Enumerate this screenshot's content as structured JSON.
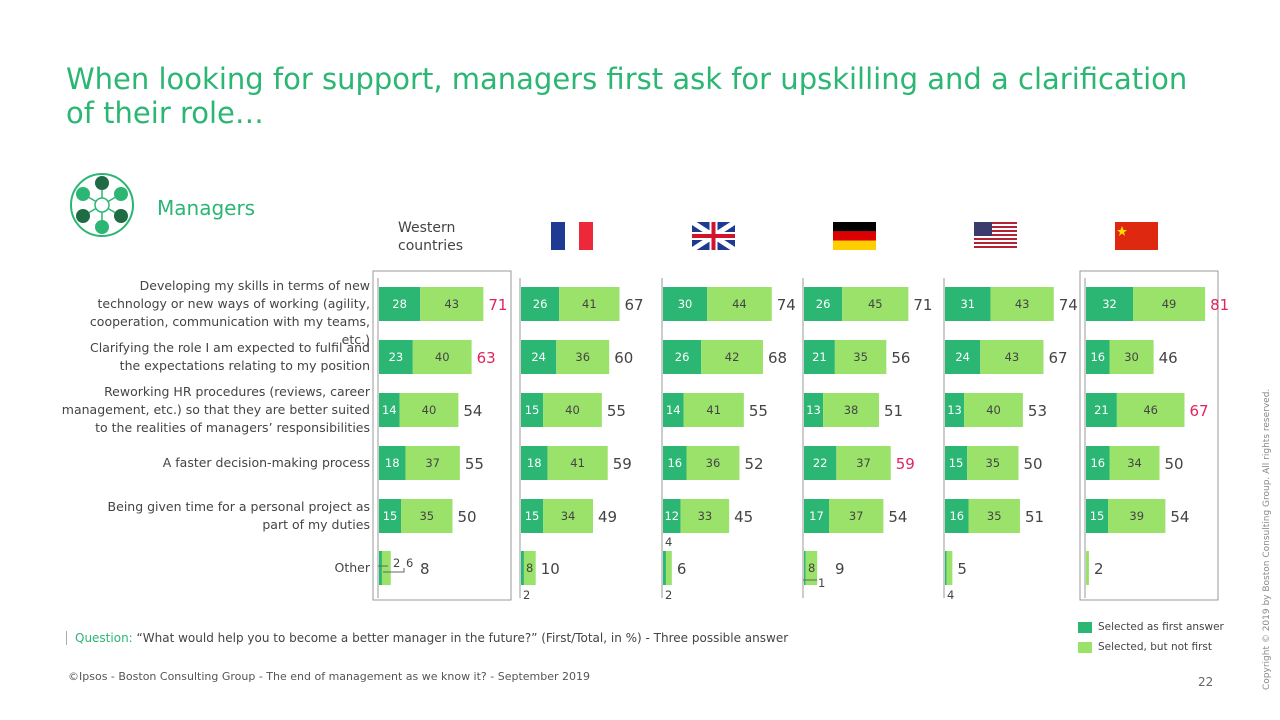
{
  "title": "When looking for support, managers first ask for upskilling and a clarification of their role…",
  "segment": "Managers",
  "colors": {
    "first": "#2bb673",
    "not_first": "#9be26b",
    "highlight": "#e0245e",
    "title": "#2bb673"
  },
  "chart_data": {
    "type": "bar",
    "stacked": true,
    "orientation": "horizontal",
    "groups": [
      "Western countries",
      "France",
      "United Kingdom",
      "Germany",
      "United States",
      "China"
    ],
    "categories": [
      "Developing my skills in terms of new technology or new ways of working (agility, cooperation, communication with my teams, etc.)",
      "Clarifying the role I am expected to fulfil and the expectations relating to my position",
      "Reworking HR procedures (reviews, career management, etc.) so that they are better suited to the realities of managers’ responsibilities",
      "A faster decision-making process",
      "Being given time for a personal project as part of my duties",
      "Other"
    ],
    "series": [
      {
        "name": "Selected as first answer",
        "values": [
          [
            28,
            23,
            14,
            18,
            15,
            2
          ],
          [
            26,
            24,
            15,
            18,
            15,
            2
          ],
          [
            30,
            26,
            14,
            16,
            12,
            2
          ],
          [
            26,
            21,
            13,
            22,
            17,
            1
          ],
          [
            31,
            24,
            13,
            15,
            16,
            1
          ],
          [
            32,
            16,
            21,
            16,
            15,
            0
          ]
        ]
      },
      {
        "name": "Selected, but not first",
        "values": [
          [
            43,
            40,
            40,
            37,
            35,
            6
          ],
          [
            41,
            36,
            40,
            41,
            34,
            8
          ],
          [
            44,
            42,
            41,
            36,
            33,
            4
          ],
          [
            45,
            35,
            38,
            37,
            37,
            8
          ],
          [
            43,
            43,
            40,
            35,
            35,
            4
          ],
          [
            49,
            30,
            46,
            34,
            39,
            2
          ]
        ]
      }
    ],
    "totals": [
      [
        71,
        63,
        54,
        55,
        50,
        8
      ],
      [
        67,
        60,
        55,
        59,
        49,
        10
      ],
      [
        74,
        68,
        55,
        52,
        45,
        6
      ],
      [
        71,
        56,
        51,
        59,
        54,
        9
      ],
      [
        74,
        67,
        53,
        50,
        51,
        5
      ],
      [
        81,
        46,
        67,
        50,
        54,
        2
      ]
    ],
    "highlighted": [
      [
        true,
        true,
        false,
        false,
        false,
        false
      ],
      [
        false,
        false,
        false,
        false,
        false,
        false
      ],
      [
        false,
        false,
        false,
        false,
        false,
        false
      ],
      [
        false,
        false,
        false,
        true,
        false,
        false
      ],
      [
        false,
        false,
        false,
        false,
        false,
        false
      ],
      [
        true,
        false,
        true,
        false,
        false,
        false
      ]
    ],
    "boxed_groups": [
      "Western countries",
      "China"
    ],
    "xlabel": "",
    "ylabel": "%"
  },
  "group_header": "Western countries",
  "question_label": "Question:",
  "question": " “What would help you to become a better manager in the future?” (First/Total, in %) - Three possible answer",
  "legend": [
    "Selected as first answer",
    "Selected, but not first"
  ],
  "footer": "©Ipsos - Boston Consulting Group - The end of management as we know it? - September 2019",
  "page_number": "22",
  "vertical_copyright": "Copyright © 2019 by Boston Consulting Group. All rights reserved."
}
